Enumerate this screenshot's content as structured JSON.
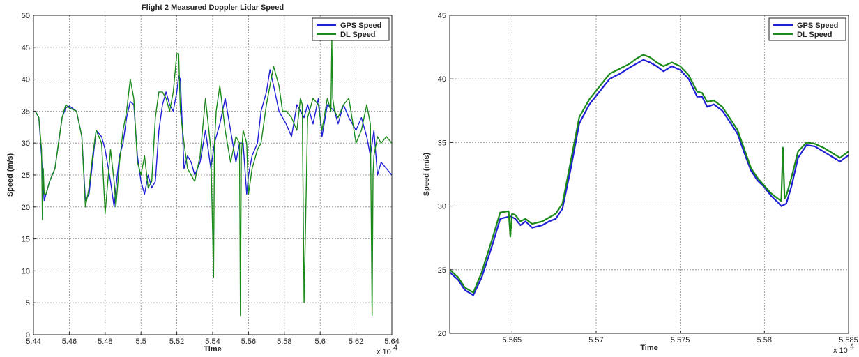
{
  "chart_data": [
    {
      "type": "line",
      "title": "Flight 2 Measured Doppler Lidar Speed",
      "xlabel": "Time",
      "ylabel": "Speed (m/s)",
      "x_multiplier": "x 10",
      "x_exponent": "4",
      "xlim": [
        5.44,
        5.64
      ],
      "ylim": [
        0,
        50
      ],
      "xticks": [
        "5.44",
        "5.46",
        "5.48",
        "5.5",
        "5.52",
        "5.54",
        "5.56",
        "5.58",
        "5.6",
        "5.62",
        "5.64"
      ],
      "yticks": [
        "0",
        "5",
        "10",
        "15",
        "20",
        "25",
        "30",
        "35",
        "40",
        "45",
        "50"
      ],
      "grid": true,
      "legend": "top-right",
      "series": [
        {
          "name": "GPS Speed",
          "color": "#1f1fd6",
          "x": [
            5.441,
            5.443,
            5.4445,
            5.4452,
            5.446,
            5.447,
            5.449,
            5.452,
            5.456,
            5.458,
            5.46,
            5.464,
            5.467,
            5.469,
            5.471,
            5.473,
            5.475,
            5.478,
            5.48,
            5.483,
            5.485,
            5.486,
            5.488,
            5.49,
            5.492,
            5.494,
            5.496,
            5.498,
            5.5,
            5.502,
            5.504,
            5.506,
            5.508,
            5.51,
            5.512,
            5.514,
            5.516,
            5.518,
            5.52,
            5.521,
            5.522,
            5.524,
            5.526,
            5.528,
            5.53,
            5.533,
            5.536,
            5.539,
            5.541,
            5.544,
            5.547,
            5.55,
            5.553,
            5.555,
            5.557,
            5.559,
            5.56,
            5.562,
            5.565,
            5.567,
            5.57,
            5.572,
            5.574,
            5.577,
            5.579,
            5.581,
            5.584,
            5.587,
            5.589,
            5.591,
            5.593,
            5.596,
            5.599,
            5.601,
            5.604,
            5.608,
            5.61,
            5.613,
            5.616,
            5.62,
            5.623,
            5.626,
            5.628,
            5.63,
            5.632,
            5.634,
            5.637,
            5.64
          ],
          "values": [
            35,
            34,
            28,
            24,
            21,
            22,
            24,
            26,
            34,
            35.5,
            35.8,
            35,
            31,
            21,
            22,
            27,
            32,
            31,
            29,
            24,
            20,
            23,
            28,
            30,
            34,
            36.5,
            36,
            28,
            24,
            22,
            25,
            23,
            24,
            32,
            36,
            38,
            36,
            35,
            38,
            40.5,
            40,
            26,
            28,
            27,
            25,
            27,
            32,
            26,
            30,
            33,
            37,
            32,
            27,
            30,
            30,
            22,
            25,
            28,
            30,
            35,
            38,
            41.5,
            39,
            35,
            34,
            33,
            31,
            36,
            35,
            34,
            36,
            33,
            37,
            31,
            36,
            35,
            33,
            36,
            34,
            32,
            34,
            31,
            28,
            32,
            25,
            27,
            26,
            25
          ]
        },
        {
          "name": "DL Speed",
          "color": "#1a8a1a",
          "x": [
            5.441,
            5.443,
            5.4445,
            5.445,
            5.4455,
            5.446,
            5.447,
            5.449,
            5.452,
            5.456,
            5.458,
            5.46,
            5.464,
            5.467,
            5.469,
            5.471,
            5.473,
            5.475,
            5.478,
            5.48,
            5.483,
            5.485,
            5.486,
            5.488,
            5.49,
            5.492,
            5.494,
            5.496,
            5.498,
            5.5,
            5.502,
            5.504,
            5.506,
            5.508,
            5.51,
            5.512,
            5.514,
            5.516,
            5.518,
            5.52,
            5.521,
            5.522,
            5.524,
            5.526,
            5.528,
            5.53,
            5.533,
            5.536,
            5.539,
            5.5405,
            5.541,
            5.542,
            5.544,
            5.547,
            5.55,
            5.553,
            5.555,
            5.5555,
            5.556,
            5.557,
            5.559,
            5.56,
            5.562,
            5.565,
            5.567,
            5.57,
            5.572,
            5.574,
            5.577,
            5.579,
            5.581,
            5.584,
            5.587,
            5.589,
            5.59,
            5.591,
            5.593,
            5.596,
            5.599,
            5.601,
            5.604,
            5.606,
            5.6065,
            5.607,
            5.608,
            5.61,
            5.613,
            5.616,
            5.62,
            5.623,
            5.626,
            5.628,
            5.629,
            5.6295,
            5.63,
            5.632,
            5.634,
            5.637,
            5.64
          ],
          "values": [
            35,
            34,
            29,
            18,
            26,
            22,
            22,
            24,
            26,
            34,
            36,
            35.5,
            35,
            31,
            20,
            23,
            28,
            32,
            30,
            19,
            29,
            24,
            20,
            27,
            32,
            35,
            40,
            37,
            27,
            25,
            28,
            23,
            24,
            34,
            38,
            38,
            37,
            35,
            38,
            44,
            44,
            35,
            30,
            26,
            25,
            24,
            28,
            37,
            29,
            9,
            30,
            35,
            39,
            32,
            27,
            31,
            30,
            3,
            28,
            32,
            30,
            22,
            26,
            29,
            30,
            36,
            39,
            42,
            39,
            35,
            35,
            34,
            32,
            37,
            36,
            5,
            34,
            37,
            36,
            32,
            37,
            35,
            46,
            37,
            35,
            34,
            36,
            37,
            30,
            32,
            36,
            33,
            3,
            25,
            28,
            31,
            30,
            31,
            30
          ]
        }
      ]
    },
    {
      "type": "line",
      "title": "",
      "xlabel": "Time",
      "ylabel": "Speed (m/s)",
      "x_multiplier": "x 10",
      "x_exponent": "4",
      "xlim": [
        5.5613,
        5.585
      ],
      "ylim": [
        20,
        45
      ],
      "xticks": [
        "5.565",
        "5.57",
        "5.575",
        "5.58",
        "5.585"
      ],
      "xtick_values": [
        5.565,
        5.57,
        5.575,
        5.58,
        5.585
      ],
      "yticks": [
        "20",
        "25",
        "30",
        "35",
        "40",
        "45"
      ],
      "grid": true,
      "legend": "top-right",
      "series": [
        {
          "name": "GPS Speed",
          "color": "#1f1fd6",
          "x": [
            5.5613,
            5.5618,
            5.5622,
            5.5627,
            5.5632,
            5.5638,
            5.5643,
            5.5649,
            5.5652,
            5.5655,
            5.5658,
            5.5662,
            5.5668,
            5.5672,
            5.5676,
            5.568,
            5.5685,
            5.569,
            5.5696,
            5.5702,
            5.5708,
            5.5714,
            5.572,
            5.5724,
            5.5728,
            5.5732,
            5.5736,
            5.574,
            5.5745,
            5.575,
            5.5755,
            5.576,
            5.5763,
            5.5766,
            5.577,
            5.5775,
            5.578,
            5.5784,
            5.5788,
            5.5792,
            5.5796,
            5.58,
            5.5804,
            5.5808,
            5.581,
            5.5813,
            5.5816,
            5.582,
            5.5825,
            5.583,
            5.5835,
            5.584,
            5.5845,
            5.585
          ],
          "values": [
            24.8,
            24.2,
            23.4,
            23,
            24.4,
            26.8,
            29,
            29.2,
            29,
            28.5,
            28.8,
            28.3,
            28.5,
            28.8,
            29,
            29.8,
            33,
            36.5,
            38,
            39,
            40,
            40.4,
            40.9,
            41.2,
            41.5,
            41.3,
            41,
            40.6,
            41,
            40.7,
            40,
            38.6,
            38.6,
            37.8,
            38,
            37.5,
            36.5,
            35.7,
            34.2,
            32.8,
            32,
            31.5,
            30.8,
            30.3,
            30,
            30.2,
            31.5,
            33.8,
            34.8,
            34.7,
            34.3,
            33.9,
            33.5,
            34
          ]
        },
        {
          "name": "DL Speed",
          "color": "#1a8a1a",
          "x": [
            5.5613,
            5.5618,
            5.5622,
            5.5627,
            5.5632,
            5.5638,
            5.5643,
            5.5648,
            5.5649,
            5.565,
            5.5652,
            5.5655,
            5.5658,
            5.5662,
            5.5668,
            5.5672,
            5.5676,
            5.568,
            5.5685,
            5.569,
            5.5696,
            5.5702,
            5.5708,
            5.5714,
            5.572,
            5.5724,
            5.5728,
            5.5732,
            5.5736,
            5.574,
            5.5745,
            5.575,
            5.5755,
            5.576,
            5.5763,
            5.5766,
            5.577,
            5.5775,
            5.578,
            5.5784,
            5.5788,
            5.5792,
            5.5796,
            5.58,
            5.5804,
            5.5808,
            5.581,
            5.5811,
            5.5812,
            5.5813,
            5.5816,
            5.582,
            5.5825,
            5.583,
            5.5835,
            5.584,
            5.5845,
            5.585
          ],
          "values": [
            25,
            24.4,
            23.6,
            23.2,
            24.8,
            27.3,
            29.5,
            29.6,
            27.6,
            29.4,
            29.3,
            28.8,
            29,
            28.6,
            28.8,
            29.1,
            29.4,
            30.2,
            33.6,
            37,
            38.4,
            39.4,
            40.4,
            40.8,
            41.2,
            41.6,
            41.9,
            41.7,
            41.3,
            41,
            41.3,
            41,
            40.3,
            39,
            38.9,
            38.2,
            38.3,
            37.8,
            36.8,
            36,
            34.5,
            33,
            32.2,
            31.6,
            31,
            30.6,
            30.4,
            34.6,
            30.6,
            30.8,
            32.2,
            34.3,
            35,
            34.9,
            34.6,
            34.2,
            33.8,
            34.3
          ]
        }
      ]
    }
  ]
}
